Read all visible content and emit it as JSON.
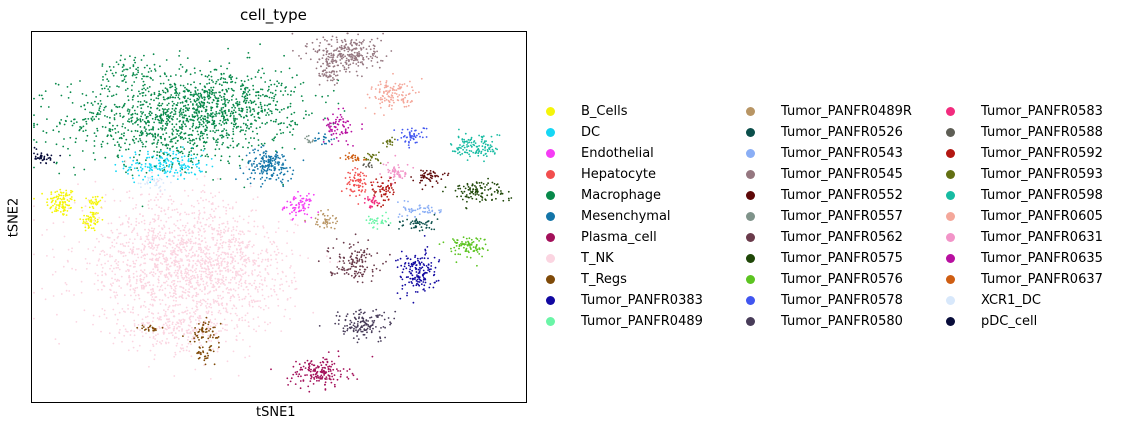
{
  "chart_data": {
    "type": "scatter",
    "title": "cell_type",
    "xlabel": "tSNE1",
    "ylabel": "tSNE2",
    "xlim": [
      -50,
      50
    ],
    "ylim": [
      -50,
      50
    ],
    "ticks": false,
    "grid": false,
    "legend_position": "right",
    "legend_columns": 3,
    "series": [
      {
        "name": "B_Cells",
        "color": "#f5f50a",
        "clusters": [
          {
            "cx": -44,
            "cy": 4,
            "sx": 1.5,
            "sy": 2,
            "n": 110
          },
          {
            "cx": -38,
            "cy": -1,
            "sx": 1,
            "sy": 1.5,
            "n": 60
          },
          {
            "cx": -37,
            "cy": 4,
            "sx": 0.8,
            "sy": 1,
            "n": 30
          }
        ]
      },
      {
        "name": "DC",
        "color": "#16d7f5",
        "clusters": [
          {
            "cx": -23,
            "cy": 14,
            "sx": 4,
            "sy": 2,
            "n": 180
          }
        ]
      },
      {
        "name": "Endothelial",
        "color": "#f53cf5",
        "clusters": [
          {
            "cx": 4,
            "cy": 3,
            "sx": 1.4,
            "sy": 1.5,
            "n": 70
          }
        ]
      },
      {
        "name": "Hepatocyte",
        "color": "#f24e4e",
        "clusters": [
          {
            "cx": 16,
            "cy": 9,
            "sx": 1.6,
            "sy": 2,
            "n": 70
          }
        ]
      },
      {
        "name": "Macrophage",
        "color": "#07894a",
        "clusters": [
          {
            "cx": -22,
            "cy": 26,
            "sx": 11,
            "sy": 6,
            "n": 950
          },
          {
            "cx": -11,
            "cy": 31,
            "sx": 8,
            "sy": 5,
            "n": 500
          },
          {
            "cx": -30,
            "cy": 40,
            "sx": 3,
            "sy": 2,
            "n": 60
          }
        ]
      },
      {
        "name": "Mesenchymal",
        "color": "#1375a8",
        "clusters": [
          {
            "cx": -2,
            "cy": 14,
            "sx": 2.5,
            "sy": 2.2,
            "n": 180
          },
          {
            "cx": 9,
            "cy": 21,
            "sx": 1,
            "sy": 1,
            "n": 20
          }
        ]
      },
      {
        "name": "Plasma_cell",
        "color": "#a3105a",
        "clusters": [
          {
            "cx": 8,
            "cy": -42,
            "sx": 3,
            "sy": 2,
            "n": 170
          }
        ]
      },
      {
        "name": "T_NK",
        "color": "#fbd5e1",
        "clusters": [
          {
            "cx": -23,
            "cy": -12,
            "sx": 9,
            "sy": 9,
            "n": 1100
          },
          {
            "cx": -11,
            "cy": -15,
            "sx": 7,
            "sy": 8,
            "n": 700
          },
          {
            "cx": -20,
            "cy": -30,
            "sx": 6,
            "sy": 3,
            "n": 200
          }
        ]
      },
      {
        "name": "T_Regs",
        "color": "#7f4a08",
        "clusters": [
          {
            "cx": -15,
            "cy": -31,
            "sx": 1.5,
            "sy": 1.5,
            "n": 60
          },
          {
            "cx": -15,
            "cy": -37,
            "sx": 1,
            "sy": 1,
            "n": 30
          },
          {
            "cx": -26,
            "cy": -30,
            "sx": 1,
            "sy": 0.5,
            "n": 20
          }
        ]
      },
      {
        "name": "Tumor_PANFR0383",
        "color": "#1108a1",
        "clusters": [
          {
            "cx": 28,
            "cy": -15,
            "sx": 2,
            "sy": 3,
            "n": 160
          }
        ]
      },
      {
        "name": "Tumor_PANFR0489",
        "color": "#6af5a7",
        "clusters": [
          {
            "cx": 20,
            "cy": -1,
            "sx": 1.2,
            "sy": 0.8,
            "n": 30
          }
        ]
      },
      {
        "name": "Tumor_PANFR0489R",
        "color": "#b89564",
        "clusters": [
          {
            "cx": 9,
            "cy": -1,
            "sx": 1.2,
            "sy": 1.2,
            "n": 40
          }
        ]
      },
      {
        "name": "Tumor_PANFR0526",
        "color": "#0b4f4b",
        "clusters": [
          {
            "cx": 28,
            "cy": -2,
            "sx": 2,
            "sy": 1,
            "n": 50
          }
        ]
      },
      {
        "name": "Tumor_PANFR0543",
        "color": "#8aaef5",
        "clusters": [
          {
            "cx": 29,
            "cy": 2,
            "sx": 2,
            "sy": 1,
            "n": 50
          }
        ]
      },
      {
        "name": "Tumor_PANFR0545",
        "color": "#957780",
        "clusters": [
          {
            "cx": 14,
            "cy": 44,
            "sx": 3.5,
            "sy": 2.5,
            "n": 260
          },
          {
            "cx": 10,
            "cy": 39,
            "sx": 1,
            "sy": 2,
            "n": 60
          }
        ]
      },
      {
        "name": "Tumor_PANFR0552",
        "color": "#5e0808",
        "clusters": [
          {
            "cx": 30,
            "cy": 11,
            "sx": 1.5,
            "sy": 1,
            "n": 50
          }
        ]
      },
      {
        "name": "Tumor_PANFR0557",
        "color": "#7f938a",
        "clusters": [
          {
            "cx": 6,
            "cy": 21,
            "sx": 0.5,
            "sy": 0.5,
            "n": 10
          }
        ]
      },
      {
        "name": "Tumor_PANFR0562",
        "color": "#6a3b4b",
        "clusters": [
          {
            "cx": 15,
            "cy": -12,
            "sx": 2.5,
            "sy": 2.5,
            "n": 130
          }
        ]
      },
      {
        "name": "Tumor_PANFR0575",
        "color": "#1f4708",
        "clusters": [
          {
            "cx": 40,
            "cy": 7,
            "sx": 3,
            "sy": 1.5,
            "n": 110
          }
        ]
      },
      {
        "name": "Tumor_PANFR0576",
        "color": "#5cc421",
        "clusters": [
          {
            "cx": 38,
            "cy": -8,
            "sx": 2,
            "sy": 1.5,
            "n": 90
          }
        ]
      },
      {
        "name": "Tumor_PANFR0578",
        "color": "#4156f0",
        "clusters": [
          {
            "cx": 27,
            "cy": 22,
            "sx": 1.5,
            "sy": 1.2,
            "n": 50
          }
        ]
      },
      {
        "name": "Tumor_PANFR0580",
        "color": "#483c59",
        "clusters": [
          {
            "cx": 17,
            "cy": -29,
            "sx": 3,
            "sy": 2,
            "n": 140
          }
        ]
      },
      {
        "name": "Tumor_PANFR0583",
        "color": "#f22b7e",
        "clusters": [
          {
            "cx": 19,
            "cy": 4,
            "sx": 0.8,
            "sy": 0.8,
            "n": 25
          }
        ]
      },
      {
        "name": "Tumor_PANFR0588",
        "color": "#5e5e55",
        "clusters": [
          {
            "cx": 18,
            "cy": 14,
            "sx": 0.5,
            "sy": 0.5,
            "n": 10
          }
        ]
      },
      {
        "name": "Tumor_PANFR0592",
        "color": "#b31712",
        "clusters": [
          {
            "cx": 21,
            "cy": 7,
            "sx": 1.2,
            "sy": 2,
            "n": 60
          }
        ]
      },
      {
        "name": "Tumor_PANFR0593",
        "color": "#637013",
        "clusters": [
          {
            "cx": 19,
            "cy": 16,
            "sx": 0.8,
            "sy": 0.8,
            "n": 20
          },
          {
            "cx": 22,
            "cy": 20,
            "sx": 0.6,
            "sy": 0.6,
            "n": 15
          }
        ]
      },
      {
        "name": "Tumor_PANFR0598",
        "color": "#17bba2",
        "clusters": [
          {
            "cx": 40,
            "cy": 19,
            "sx": 2.5,
            "sy": 1.8,
            "n": 120
          }
        ]
      },
      {
        "name": "Tumor_PANFR0605",
        "color": "#f4a79a",
        "clusters": [
          {
            "cx": 23,
            "cy": 33,
            "sx": 2.5,
            "sy": 2,
            "n": 120
          }
        ]
      },
      {
        "name": "Tumor_PANFR0631",
        "color": "#f294c8",
        "clusters": [
          {
            "cx": 24,
            "cy": 12,
            "sx": 1.2,
            "sy": 1.2,
            "n": 50
          }
        ]
      },
      {
        "name": "Tumor_PANFR0635",
        "color": "#b80fa0",
        "clusters": [
          {
            "cx": 12,
            "cy": 24,
            "sx": 1.5,
            "sy": 2,
            "n": 70
          }
        ]
      },
      {
        "name": "Tumor_PANFR0637",
        "color": "#cf5e12",
        "clusters": [
          {
            "cx": 15,
            "cy": 16,
            "sx": 1,
            "sy": 0.6,
            "n": 25
          }
        ]
      },
      {
        "name": "XCR1_DC",
        "color": "#d8e8fb",
        "clusters": [
          {
            "cx": -25,
            "cy": 9,
            "sx": 2,
            "sy": 1,
            "n": 30
          }
        ]
      },
      {
        "name": "pDC_cell",
        "color": "#080c3a",
        "clusters": [
          {
            "cx": -48,
            "cy": 16,
            "sx": 1.2,
            "sy": 0.8,
            "n": 40
          }
        ]
      }
    ]
  }
}
